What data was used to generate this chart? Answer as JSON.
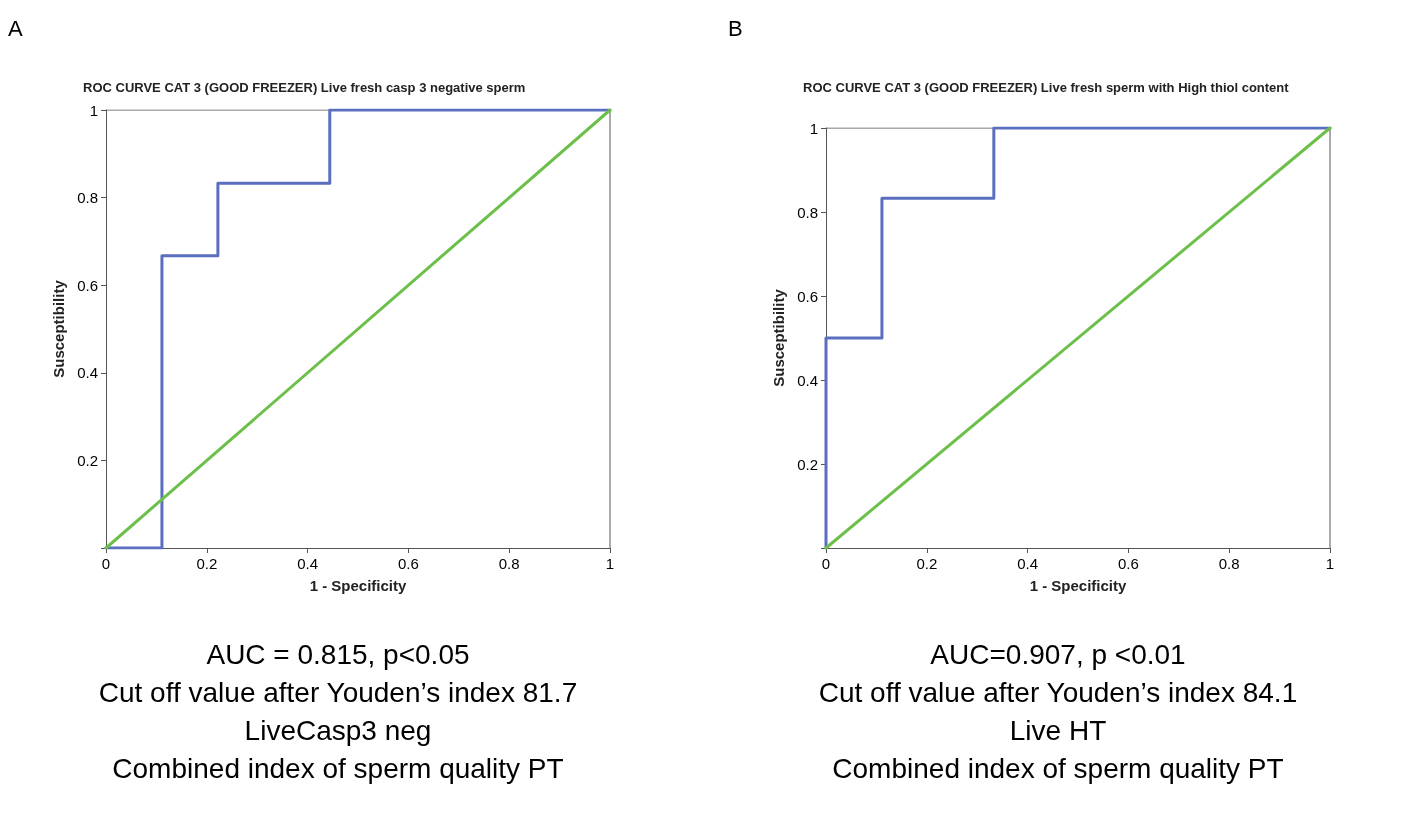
{
  "chart_data": [
    {
      "type": "line",
      "title": "ROC CURVE CAT 3 (GOOD FREEZER) Live fresh casp 3 negative sperm",
      "xlabel": "1 - Specificity",
      "ylabel": "Susceptibility",
      "series": [
        {
          "color": "#5b6fbf",
          "x": [
            0,
            0.111,
            0.111,
            0.222,
            0.222,
            0.444,
            0.444,
            1
          ],
          "values": [
            0,
            0,
            0.667,
            0.667,
            0.833,
            0.833,
            1,
            1
          ]
        },
        {
          "color": "#6cc04a",
          "x": [
            0,
            1
          ],
          "values": [
            0,
            1
          ]
        }
      ],
      "xlim": [
        0,
        1
      ],
      "ylim": [
        0,
        1
      ],
      "xticks": [
        0,
        0.2,
        0.4,
        0.6,
        0.8,
        1
      ],
      "yticks": [
        {
          "value": 0,
          "label": null
        },
        0.2,
        0.4,
        0.6,
        0.8,
        1
      ],
      "grid": false,
      "marker": "none",
      "line_style": "solid",
      "annotations": [
        "A",
        "AUC = 0.815, p<0.05",
        "Cut off value after Youden’s index  81.7",
        "LiveCasp3 neg",
        "Combined index of sperm quality PT"
      ]
    },
    {
      "type": "line",
      "title": "ROC CURVE CAT 3 (GOOD FREEZER) Live fresh sperm with High thiol content",
      "xlabel": "1 - Specificity",
      "ylabel": "Susceptibility",
      "series": [
        {
          "color": "#5b6fbf",
          "x": [
            0,
            0,
            0.111,
            0.111,
            0.333,
            0.333,
            1
          ],
          "values": [
            0,
            0.5,
            0.5,
            0.833,
            0.833,
            1,
            1
          ]
        },
        {
          "color": "#6cc04a",
          "x": [
            0,
            1
          ],
          "values": [
            0,
            1
          ]
        }
      ],
      "xlim": [
        0,
        1
      ],
      "ylim": [
        0,
        1
      ],
      "xticks": [
        0,
        0.2,
        0.4,
        0.6,
        0.8,
        1
      ],
      "yticks": [
        {
          "value": 0,
          "label": null
        },
        0.2,
        0.4,
        0.6,
        0.8,
        1
      ],
      "grid": false,
      "marker": "none",
      "line_style": "solid",
      "annotations": [
        "B",
        "AUC=0.907, p <0.01",
        "Cut off value after Youden’s index 84.1",
        "Live HT",
        "Combined index of sperm quality PT"
      ]
    }
  ]
}
